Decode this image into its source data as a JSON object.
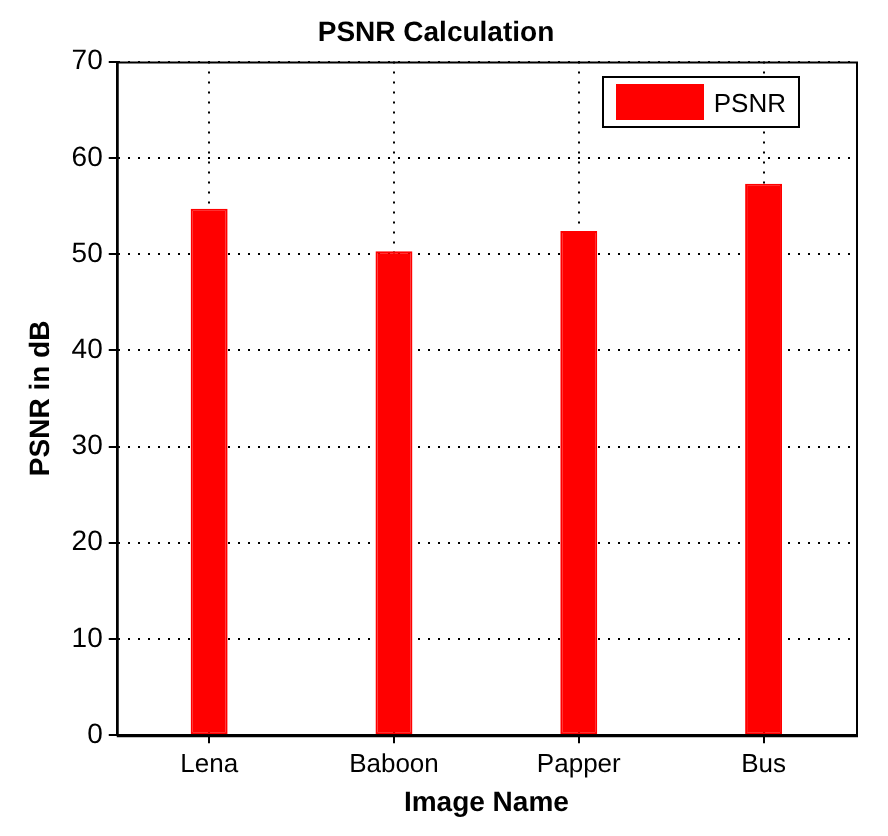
{
  "chart_data": {
    "type": "bar",
    "title": "PSNR Calculation",
    "xlabel": "Image Name",
    "ylabel": "PSNR in dB",
    "categories": [
      "Lena",
      "Baboon",
      "Papper",
      "Bus"
    ],
    "series": [
      {
        "name": "PSNR",
        "color": "#ff0000",
        "values": [
          54.7,
          50.3,
          52.4,
          57.3
        ]
      }
    ],
    "ylim": [
      0,
      70
    ],
    "yticks": [
      0,
      10,
      20,
      30,
      40,
      50,
      60,
      70
    ],
    "grid": true,
    "legend": "top right"
  }
}
